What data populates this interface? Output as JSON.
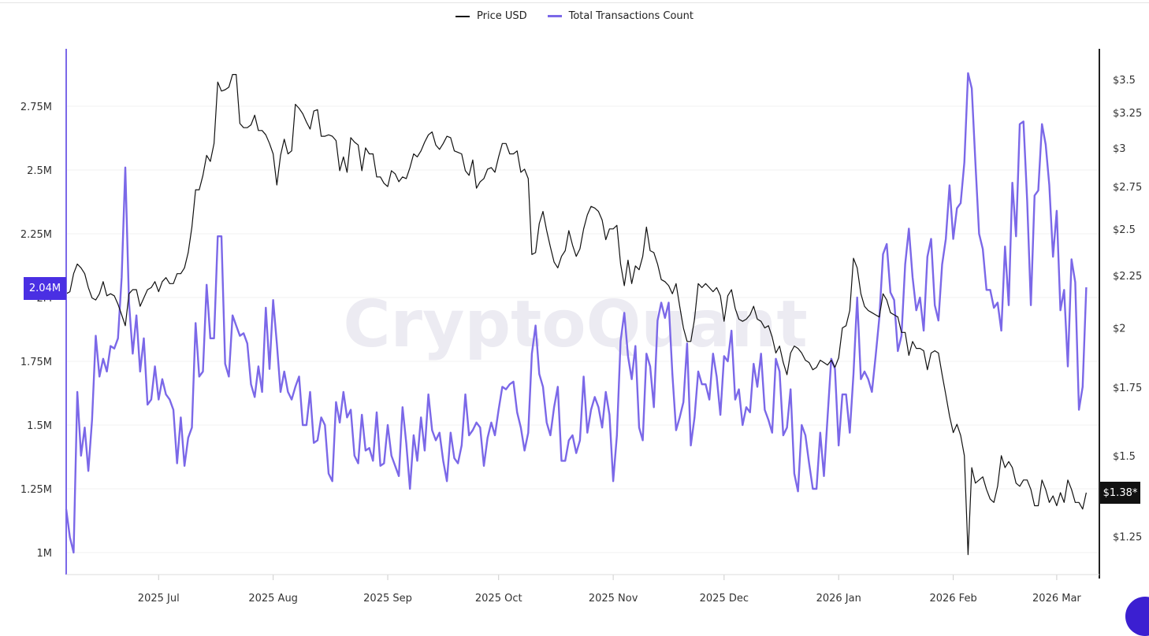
{
  "chart_data": {
    "type": "line",
    "legend": [
      "Price USD",
      "Total Transactions Count"
    ],
    "legend_position": "top-center",
    "x_range": [
      "2025-06-06",
      "2026-03-09"
    ],
    "x_frequency": "daily",
    "x_ticks": [
      "2025 Jul",
      "2025 Aug",
      "2025 Sep",
      "2025 Oct",
      "2025 Nov",
      "2025 Dec",
      "2026 Jan",
      "2026 Feb",
      "2026 Mar"
    ],
    "x_tick_dates": [
      "2025-07-01",
      "2025-08-01",
      "2025-09-01",
      "2025-10-01",
      "2025-11-01",
      "2025-12-01",
      "2026-01-01",
      "2026-02-01",
      "2026-03-01"
    ],
    "y_left": {
      "ticks": [
        "1M",
        "1.25M",
        "1.5M",
        "1.75M",
        "2M",
        "2.25M",
        "2.5M",
        "2.75M"
      ],
      "tick_values": [
        1,
        1.25,
        1.5,
        1.75,
        2,
        2.25,
        2.5,
        2.75
      ],
      "unit": "M",
      "scale": "linear",
      "grid": true
    },
    "y_right": {
      "ticks": [
        "$1.25",
        "$1.5",
        "$1.75",
        "$2",
        "$2.25",
        "$2.5",
        "$2.75",
        "$3",
        "$3.25",
        "$3.5"
      ],
      "tick_values": [
        1.25,
        1.5,
        1.75,
        2,
        2.25,
        2.5,
        2.75,
        3,
        3.25,
        3.5
      ],
      "scale": "log"
    },
    "current_labels": {
      "left": "2.04M",
      "right": "$1.38*"
    },
    "series": [
      {
        "name": "Price USD",
        "axis": "right",
        "color": "#111111",
        "values": [
          2.16,
          2.17,
          2.26,
          2.31,
          2.29,
          2.26,
          2.19,
          2.14,
          2.13,
          2.16,
          2.22,
          2.15,
          2.16,
          2.15,
          2.11,
          2.06,
          2.01,
          2.16,
          2.18,
          2.18,
          2.1,
          2.14,
          2.18,
          2.19,
          2.22,
          2.17,
          2.22,
          2.24,
          2.21,
          2.21,
          2.26,
          2.26,
          2.29,
          2.37,
          2.51,
          2.73,
          2.73,
          2.82,
          2.95,
          2.91,
          3.03,
          3.48,
          3.41,
          3.42,
          3.44,
          3.54,
          3.54,
          3.17,
          3.14,
          3.14,
          3.16,
          3.23,
          3.12,
          3.12,
          3.09,
          3.03,
          2.96,
          2.76,
          2.95,
          3.06,
          2.96,
          2.98,
          3.31,
          3.28,
          3.24,
          3.18,
          3.13,
          3.26,
          3.27,
          3.08,
          3.08,
          3.09,
          3.08,
          3.05,
          2.85,
          2.94,
          2.84,
          3.07,
          3.04,
          3.02,
          2.85,
          3.0,
          2.96,
          2.96,
          2.81,
          2.81,
          2.77,
          2.75,
          2.85,
          2.83,
          2.78,
          2.81,
          2.8,
          2.87,
          2.96,
          2.94,
          2.98,
          3.04,
          3.09,
          3.11,
          3.02,
          2.99,
          3.03,
          3.08,
          3.07,
          2.98,
          2.97,
          2.96,
          2.85,
          2.82,
          2.92,
          2.74,
          2.78,
          2.8,
          2.86,
          2.87,
          2.84,
          2.94,
          3.03,
          3.03,
          2.96,
          2.96,
          2.98,
          2.84,
          2.86,
          2.8,
          2.36,
          2.37,
          2.53,
          2.6,
          2.49,
          2.4,
          2.32,
          2.29,
          2.35,
          2.38,
          2.49,
          2.41,
          2.35,
          2.39,
          2.5,
          2.58,
          2.63,
          2.62,
          2.6,
          2.55,
          2.44,
          2.5,
          2.5,
          2.52,
          2.31,
          2.2,
          2.33,
          2.21,
          2.3,
          2.28,
          2.35,
          2.51,
          2.38,
          2.37,
          2.31,
          2.23,
          2.22,
          2.2,
          2.16,
          2.21,
          2.1,
          2.0,
          1.94,
          1.94,
          2.04,
          2.21,
          2.19,
          2.21,
          2.19,
          2.17,
          2.19,
          2.15,
          2.03,
          2.15,
          2.18,
          2.09,
          2.04,
          2.03,
          2.04,
          2.06,
          2.1,
          2.04,
          2.03,
          2.0,
          2.01,
          1.96,
          1.89,
          1.92,
          1.85,
          1.8,
          1.89,
          1.92,
          1.91,
          1.89,
          1.86,
          1.85,
          1.82,
          1.83,
          1.86,
          1.85,
          1.84,
          1.86,
          1.83,
          1.87,
          2.0,
          2.01,
          2.08,
          2.34,
          2.29,
          2.16,
          2.1,
          2.08,
          2.07,
          2.06,
          2.05,
          2.16,
          2.13,
          2.07,
          2.06,
          2.05,
          1.98,
          1.98,
          1.88,
          1.94,
          1.91,
          1.91,
          1.9,
          1.82,
          1.89,
          1.9,
          1.89,
          1.8,
          1.72,
          1.64,
          1.58,
          1.61,
          1.57,
          1.5,
          1.2,
          1.46,
          1.41,
          1.42,
          1.43,
          1.39,
          1.36,
          1.35,
          1.4,
          1.5,
          1.46,
          1.48,
          1.46,
          1.41,
          1.4,
          1.42,
          1.42,
          1.39,
          1.34,
          1.34,
          1.42,
          1.39,
          1.35,
          1.37,
          1.34,
          1.38,
          1.35,
          1.42,
          1.39,
          1.35,
          1.35,
          1.33,
          1.38
        ]
      },
      {
        "name": "Total Transactions Count",
        "axis": "left",
        "unit": "M",
        "color": "#7b68e8",
        "values": [
          1.17,
          1.06,
          1.0,
          1.63,
          1.38,
          1.49,
          1.32,
          1.52,
          1.85,
          1.69,
          1.76,
          1.71,
          1.81,
          1.8,
          1.84,
          2.08,
          2.51,
          1.98,
          1.78,
          1.93,
          1.71,
          1.84,
          1.58,
          1.6,
          1.73,
          1.6,
          1.68,
          1.62,
          1.6,
          1.56,
          1.35,
          1.53,
          1.34,
          1.45,
          1.49,
          1.9,
          1.69,
          1.71,
          2.05,
          1.84,
          1.84,
          2.24,
          2.24,
          1.74,
          1.69,
          1.93,
          1.89,
          1.85,
          1.86,
          1.82,
          1.66,
          1.61,
          1.73,
          1.63,
          1.96,
          1.72,
          1.99,
          1.82,
          1.63,
          1.71,
          1.63,
          1.6,
          1.65,
          1.69,
          1.5,
          1.5,
          1.63,
          1.43,
          1.44,
          1.53,
          1.5,
          1.31,
          1.28,
          1.59,
          1.51,
          1.63,
          1.53,
          1.56,
          1.38,
          1.35,
          1.54,
          1.4,
          1.41,
          1.36,
          1.55,
          1.34,
          1.35,
          1.5,
          1.38,
          1.34,
          1.3,
          1.57,
          1.43,
          1.25,
          1.46,
          1.36,
          1.53,
          1.4,
          1.62,
          1.48,
          1.44,
          1.47,
          1.36,
          1.28,
          1.47,
          1.37,
          1.35,
          1.42,
          1.62,
          1.46,
          1.48,
          1.51,
          1.49,
          1.34,
          1.45,
          1.51,
          1.46,
          1.56,
          1.65,
          1.64,
          1.66,
          1.67,
          1.55,
          1.49,
          1.4,
          1.47,
          1.78,
          1.89,
          1.7,
          1.65,
          1.51,
          1.46,
          1.57,
          1.65,
          1.36,
          1.36,
          1.44,
          1.46,
          1.39,
          1.44,
          1.69,
          1.47,
          1.56,
          1.61,
          1.57,
          1.49,
          1.63,
          1.54,
          1.28,
          1.46,
          1.83,
          1.94,
          1.77,
          1.68,
          1.81,
          1.49,
          1.44,
          1.78,
          1.73,
          1.57,
          1.91,
          1.98,
          1.92,
          1.98,
          1.7,
          1.48,
          1.53,
          1.59,
          1.82,
          1.42,
          1.53,
          1.71,
          1.66,
          1.66,
          1.6,
          1.78,
          1.69,
          1.54,
          1.77,
          1.75,
          1.87,
          1.6,
          1.64,
          1.5,
          1.57,
          1.55,
          1.74,
          1.65,
          1.78,
          1.56,
          1.52,
          1.47,
          1.76,
          1.71,
          1.46,
          1.49,
          1.64,
          1.31,
          1.24,
          1.5,
          1.46,
          1.35,
          1.25,
          1.25,
          1.47,
          1.3,
          1.53,
          1.76,
          1.72,
          1.42,
          1.62,
          1.62,
          1.47,
          1.7,
          2.0,
          1.68,
          1.71,
          1.68,
          1.63,
          1.77,
          1.92,
          2.17,
          2.21,
          2.02,
          1.99,
          1.79,
          1.85,
          2.13,
          2.27,
          2.08,
          1.95,
          2.0,
          1.87,
          2.16,
          2.23,
          1.97,
          1.91,
          2.13,
          2.23,
          2.44,
          2.23,
          2.35,
          2.37,
          2.53,
          2.88,
          2.82,
          2.53,
          2.25,
          2.19,
          2.03,
          2.03,
          1.96,
          1.98,
          1.87,
          2.2,
          1.97,
          2.45,
          2.24,
          2.68,
          2.69,
          2.38,
          1.97,
          2.4,
          2.42,
          2.68,
          2.6,
          2.44,
          2.16,
          2.34,
          1.95,
          2.03,
          1.73,
          2.15,
          2.06,
          1.56,
          1.65,
          2.04
        ]
      }
    ]
  },
  "watermark": "CryptoQuant",
  "colors": {
    "price": "#111111",
    "transactions": "#7b68e8",
    "left_badge": "#4a2fe3",
    "right_badge": "#111111",
    "grid": "#f0f0f0"
  }
}
